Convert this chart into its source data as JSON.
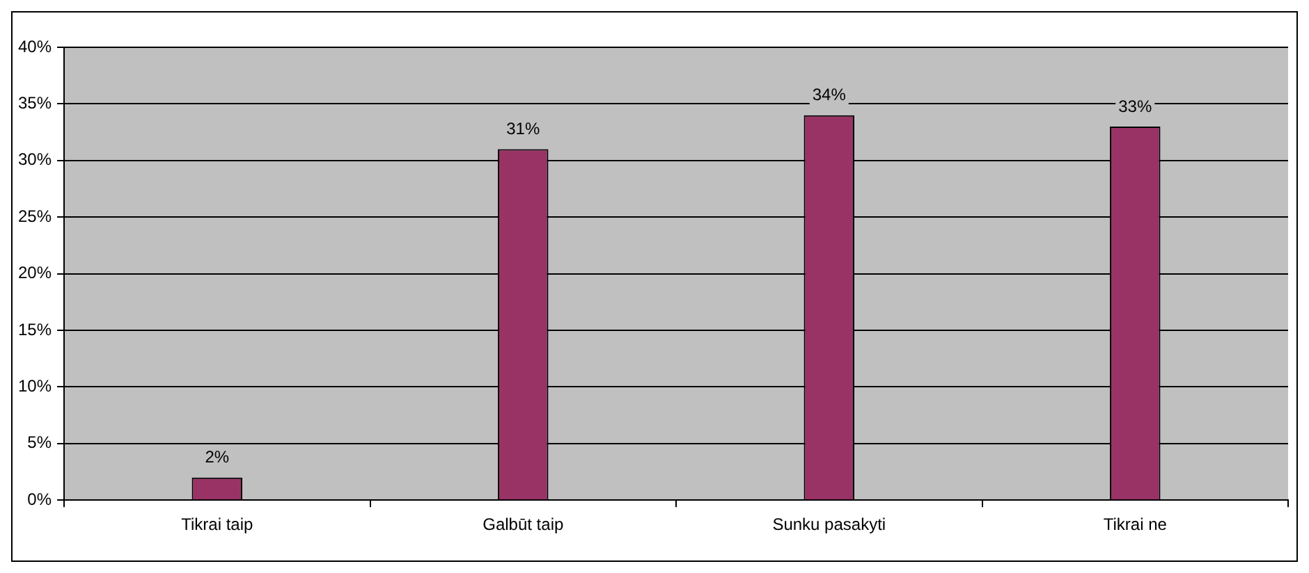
{
  "chart_data": {
    "type": "bar",
    "categories": [
      "Tikrai taip",
      "Galbūt taip",
      "Sunku pasakyti",
      "Tikrai ne"
    ],
    "values": [
      2,
      31,
      34,
      33
    ],
    "value_labels": [
      "2%",
      "31%",
      "34%",
      "33%"
    ],
    "color": "#993366",
    "ylim": [
      0,
      40
    ],
    "yticks": [
      {
        "value": 0,
        "label": "0%"
      },
      {
        "value": 5,
        "label": "5%"
      },
      {
        "value": 10,
        "label": "10%"
      },
      {
        "value": 15,
        "label": "15%"
      },
      {
        "value": 20,
        "label": "20%"
      },
      {
        "value": 25,
        "label": "25%"
      },
      {
        "value": 30,
        "label": "30%"
      },
      {
        "value": 35,
        "label": "35%"
      },
      {
        "value": 40,
        "label": "40%"
      }
    ],
    "grid": "y",
    "legend": false
  }
}
